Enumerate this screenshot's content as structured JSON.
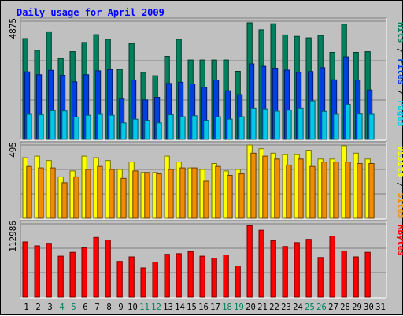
{
  "chart_data": {
    "type": "bar",
    "title": "Daily usage for April 2009",
    "title_color": "#0000ff",
    "background": "#c0c0c0",
    "categories": [
      "1",
      "2",
      "3",
      "4",
      "5",
      "6",
      "7",
      "8",
      "9",
      "10",
      "11",
      "12",
      "13",
      "14",
      "15",
      "16",
      "17",
      "18",
      "19",
      "20",
      "21",
      "22",
      "23",
      "24",
      "25",
      "26",
      "27",
      "28",
      "29",
      "30",
      "31"
    ],
    "weekend_days": [
      "4",
      "5",
      "11",
      "12",
      "18",
      "19",
      "25",
      "26"
    ],
    "weekend_color": "#00805c",
    "weekday_color": "#000000",
    "panels": [
      {
        "id": "hits-files-pages",
        "ymax": 4875,
        "ymax_label": "4875",
        "side_labels": [
          {
            "text": "Pages",
            "color": "#00c8e8"
          },
          {
            "text": " / ",
            "color": "#000000"
          },
          {
            "text": "Files",
            "color": "#0040e0"
          },
          {
            "text": " / ",
            "color": "#000000"
          },
          {
            "text": "Hits",
            "color": "#00805c"
          }
        ],
        "series": [
          {
            "name": "Hits",
            "color": "#00805c",
            "values": [
              4160,
              3680,
              4440,
              3340,
              3620,
              4000,
              4320,
              4130,
              2890,
              3960,
              2770,
              2630,
              3430,
              4130,
              3280,
              3280,
              3280,
              3280,
              2810,
              4810,
              4520,
              4770,
              4310,
              4250,
              4190,
              4290,
              3590,
              4750,
              3590,
              3620,
              0
            ]
          },
          {
            "name": "Files",
            "color": "#0040e0",
            "values": [
              2790,
              2670,
              2850,
              2650,
              2380,
              2670,
              2830,
              2880,
              1700,
              2450,
              1630,
              1740,
              2310,
              2360,
              2290,
              2150,
              2450,
              2010,
              1850,
              3120,
              3020,
              2940,
              2860,
              2770,
              2800,
              2960,
              2460,
              3410,
              2450,
              2040,
              0
            ]
          },
          {
            "name": "Pages",
            "color": "#00c8e8",
            "values": [
              1040,
              1020,
              1190,
              1180,
              930,
              1000,
              1040,
              1000,
              690,
              840,
              790,
              690,
              1020,
              940,
              980,
              790,
              940,
              840,
              940,
              1290,
              1260,
              1170,
              1210,
              1290,
              1590,
              1160,
              1040,
              1450,
              1050,
              1040,
              0
            ]
          }
        ]
      },
      {
        "id": "visits-sites",
        "ymax": 495,
        "ymax_label": "495",
        "side_labels": [
          {
            "text": "Sites",
            "color": "#f08c00"
          },
          {
            "text": " / ",
            "color": "#000000"
          },
          {
            "text": "Visits",
            "color": "#ffff00"
          }
        ],
        "series": [
          {
            "name": "Visits",
            "color": "#ffff00",
            "values": [
              410,
              420,
              390,
              280,
              320,
              420,
              410,
              390,
              330,
              380,
              310,
              310,
              420,
              380,
              340,
              330,
              370,
              320,
              330,
              510,
              470,
              440,
              430,
              430,
              460,
              400,
              400,
              490,
              440,
              400,
              0
            ]
          },
          {
            "name": "Sites",
            "color": "#f08c00",
            "values": [
              350,
              340,
              340,
              240,
              280,
              330,
              350,
              330,
              270,
              320,
              310,
              300,
              330,
              340,
              340,
              250,
              350,
              290,
              300,
              440,
              420,
              400,
              360,
              400,
              350,
              380,
              380,
              380,
              370,
              370,
              0
            ]
          }
        ]
      },
      {
        "id": "kbytes",
        "ymax": 112986,
        "ymax_label": "112986",
        "side_labels": [
          {
            "text": "KBytes",
            "color": "#ff0000"
          }
        ],
        "series": [
          {
            "name": "KBytes",
            "color": "#ff0000",
            "values": [
              85000,
              79000,
              83000,
              63000,
              69000,
              76000,
              92000,
              88000,
              55000,
              62000,
              45000,
              54000,
              66000,
              67000,
              70000,
              63000,
              60000,
              65000,
              48000,
              110000,
              103000,
              87000,
              78000,
              84000,
              89000,
              61000,
              94000,
              71000,
              62000,
              69000,
              0
            ]
          }
        ]
      }
    ]
  }
}
